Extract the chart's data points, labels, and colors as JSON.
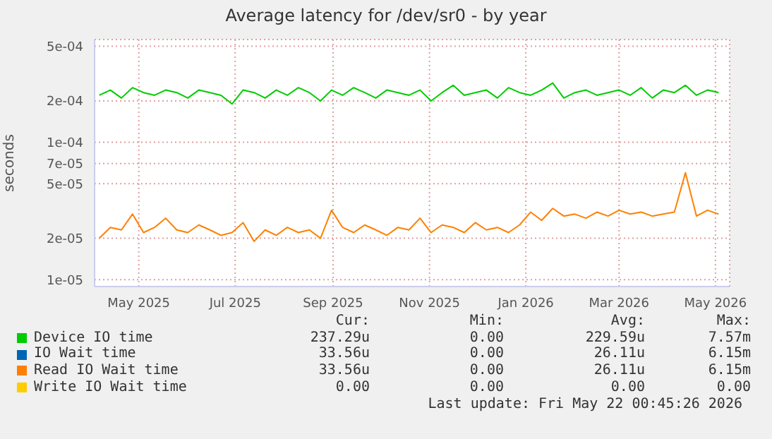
{
  "chart_data": {
    "type": "line",
    "title": "Average latency for /dev/sr0 - by year",
    "ylabel": "seconds",
    "x": [
      "2025-04-06",
      "2025-04-13",
      "2025-04-20",
      "2025-04-27",
      "2025-05-04",
      "2025-05-11",
      "2025-05-18",
      "2025-05-25",
      "2025-06-01",
      "2025-06-08",
      "2025-06-15",
      "2025-06-22",
      "2025-06-29",
      "2025-07-06",
      "2025-07-13",
      "2025-07-20",
      "2025-07-27",
      "2025-08-03",
      "2025-08-10",
      "2025-08-17",
      "2025-08-24",
      "2025-08-31",
      "2025-09-07",
      "2025-09-14",
      "2025-09-21",
      "2025-09-28",
      "2025-10-05",
      "2025-10-12",
      "2025-10-19",
      "2025-10-26",
      "2025-11-02",
      "2025-11-09",
      "2025-11-16",
      "2025-11-23",
      "2025-11-30",
      "2025-12-07",
      "2025-12-14",
      "2025-12-21",
      "2025-12-28",
      "2026-01-04",
      "2026-01-11",
      "2026-01-18",
      "2026-01-25",
      "2026-02-01",
      "2026-02-08",
      "2026-02-15",
      "2026-02-22",
      "2026-03-01",
      "2026-03-08",
      "2026-03-15",
      "2026-03-22",
      "2026-03-29",
      "2026-04-05",
      "2026-04-12",
      "2026-04-19",
      "2026-04-26",
      "2026-05-03"
    ],
    "series": [
      {
        "name": "Device IO time",
        "color": "#00cc00",
        "values": [
          0.00022,
          0.00024,
          0.00021,
          0.00025,
          0.00023,
          0.00022,
          0.00024,
          0.00023,
          0.00021,
          0.00024,
          0.00023,
          0.00022,
          0.00019,
          0.00024,
          0.00023,
          0.00021,
          0.00024,
          0.00022,
          0.00025,
          0.00023,
          0.0002,
          0.00024,
          0.00022,
          0.00025,
          0.00023,
          0.00021,
          0.00024,
          0.00023,
          0.00022,
          0.00024,
          0.0002,
          0.00023,
          0.00026,
          0.00022,
          0.00023,
          0.00024,
          0.00021,
          0.00025,
          0.00023,
          0.00022,
          0.00024,
          0.00027,
          0.00021,
          0.00023,
          0.00024,
          0.00022,
          0.00023,
          0.00024,
          0.00022,
          0.00025,
          0.00021,
          0.00024,
          0.00023,
          0.00026,
          0.00022,
          0.00024,
          0.00023
        ]
      },
      {
        "name": "IO Wait time",
        "color": "#0066b3",
        "values": [
          null,
          null,
          null,
          null,
          null,
          null,
          null,
          null,
          null,
          null,
          null,
          null,
          null,
          null,
          null,
          null,
          null,
          null,
          null,
          null,
          null,
          null,
          null,
          null,
          null,
          null,
          null,
          null,
          null,
          null,
          null,
          null,
          null,
          null,
          null,
          null,
          null,
          null,
          null,
          null,
          null,
          null,
          null,
          null,
          null,
          null,
          null,
          null,
          null,
          null,
          null,
          null,
          null,
          null,
          null,
          null,
          null
        ]
      },
      {
        "name": "Read IO Wait time",
        "color": "#ff8000",
        "values": [
          2e-05,
          2.4e-05,
          2.3e-05,
          3e-05,
          2.2e-05,
          2.4e-05,
          2.8e-05,
          2.3e-05,
          2.2e-05,
          2.5e-05,
          2.3e-05,
          2.1e-05,
          2.2e-05,
          2.6e-05,
          1.9e-05,
          2.3e-05,
          2.1e-05,
          2.4e-05,
          2.2e-05,
          2.3e-05,
          2e-05,
          3.2e-05,
          2.4e-05,
          2.2e-05,
          2.5e-05,
          2.3e-05,
          2.1e-05,
          2.4e-05,
          2.3e-05,
          2.8e-05,
          2.2e-05,
          2.5e-05,
          2.4e-05,
          2.2e-05,
          2.6e-05,
          2.3e-05,
          2.4e-05,
          2.2e-05,
          2.5e-05,
          3.1e-05,
          2.7e-05,
          3.3e-05,
          2.9e-05,
          3e-05,
          2.8e-05,
          3.1e-05,
          2.9e-05,
          3.2e-05,
          3e-05,
          3.1e-05,
          2.9e-05,
          3e-05,
          3.1e-05,
          6e-05,
          2.9e-05,
          3.2e-05,
          3e-05
        ]
      },
      {
        "name": "Write IO Wait time",
        "color": "#ffcc00",
        "values": [
          null,
          null,
          null,
          null,
          null,
          null,
          null,
          null,
          null,
          null,
          null,
          null,
          null,
          null,
          null,
          null,
          null,
          null,
          null,
          null,
          null,
          null,
          null,
          null,
          null,
          null,
          null,
          null,
          null,
          null,
          null,
          null,
          null,
          null,
          null,
          null,
          null,
          null,
          null,
          null,
          null,
          null,
          null,
          null,
          null,
          null,
          null,
          null,
          null,
          null,
          null,
          null,
          null,
          null,
          null,
          null,
          null
        ]
      }
    ],
    "log": "y",
    "ylim": [
      8.9e-06,
      0.00056
    ],
    "yticks": [
      {
        "value": 1e-05,
        "label": "1e-05"
      },
      {
        "value": 2e-05,
        "label": "2e-05"
      },
      {
        "value": 5e-05,
        "label": "5e-05"
      },
      {
        "value": 7e-05,
        "label": "7e-05"
      },
      {
        "value": 0.0001,
        "label": "1e-04"
      },
      {
        "value": 0.0002,
        "label": "2e-04"
      },
      {
        "value": 0.0005,
        "label": "5e-04"
      }
    ],
    "xlim": [
      "2025-04-03",
      "2026-05-10"
    ],
    "xticks": [
      {
        "value": "2025-05-01",
        "label": "May 2025"
      },
      {
        "value": "2025-07-01",
        "label": "Jul 2025"
      },
      {
        "value": "2025-09-01",
        "label": "Sep 2025"
      },
      {
        "value": "2025-11-01",
        "label": "Nov 2025"
      },
      {
        "value": "2026-01-01",
        "label": "Jan 2026"
      },
      {
        "value": "2026-03-01",
        "label": "Mar 2026"
      },
      {
        "value": "2026-05-01",
        "label": "May 2026"
      }
    ],
    "grid": true,
    "legend": "bottom",
    "marker": "none",
    "line_style": "solid",
    "annotations": [
      "Cur:",
      "Min:",
      "Avg:",
      "Max:",
      "237.29u",
      "0.00",
      "229.59u",
      "7.57m",
      "33.56u",
      "0.00",
      "26.11u",
      "6.15m",
      "33.56u",
      "0.00",
      "26.11u",
      "6.15m",
      "0.00",
      "0.00",
      "0.00",
      "0.00",
      "Last update: Fri May 22 00:45:26 2026"
    ]
  }
}
